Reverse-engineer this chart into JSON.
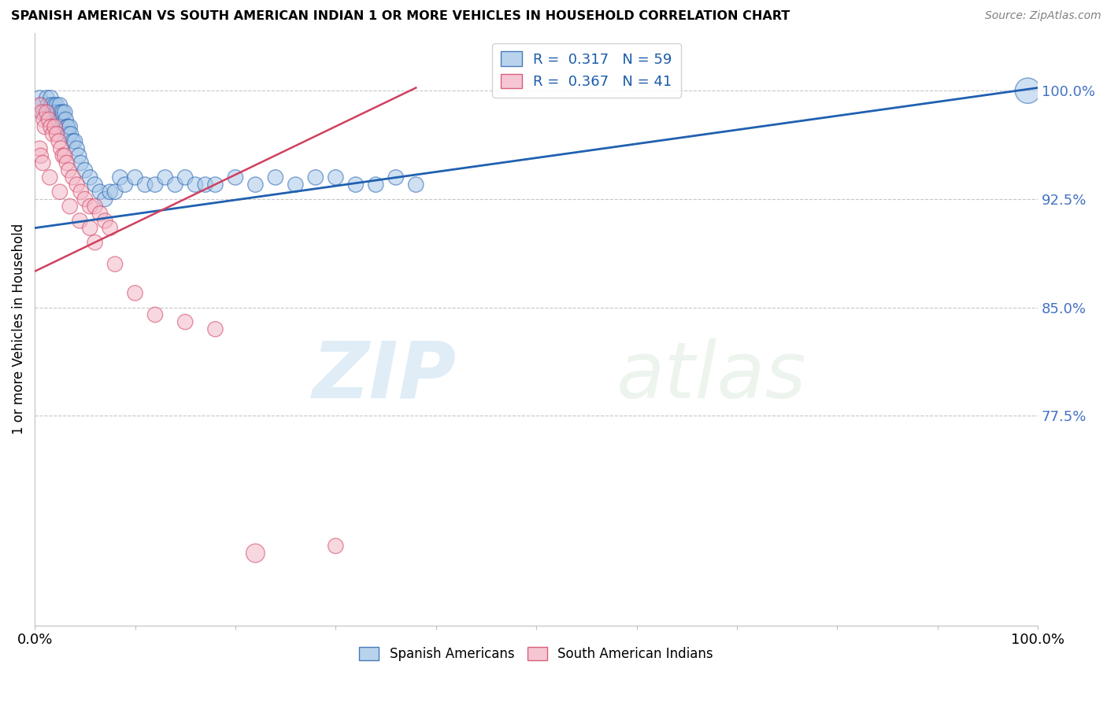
{
  "title": "SPANISH AMERICAN VS SOUTH AMERICAN INDIAN 1 OR MORE VEHICLES IN HOUSEHOLD CORRELATION CHART",
  "source": "Source: ZipAtlas.com",
  "ylabel": "1 or more Vehicles in Household",
  "R_blue": 0.317,
  "N_blue": 59,
  "R_pink": 0.367,
  "N_pink": 41,
  "color_blue": "#a8c8e8",
  "color_pink": "#f4b8c8",
  "trendline_blue": "#2060b0",
  "trendline_pink": "#d04060",
  "watermark_zip": "ZIP",
  "watermark_atlas": "atlas",
  "xlim": [
    0.0,
    1.0
  ],
  "ylim": [
    0.63,
    1.04
  ],
  "ytick_vals": [
    0.775,
    0.85,
    0.925,
    1.0
  ],
  "ytick_labels": [
    "77.5%",
    "85.0%",
    "92.5%",
    "100.0%"
  ],
  "xtick_vals": [
    0.0,
    1.0
  ],
  "xtick_labels": [
    "0.0%",
    "100.0%"
  ],
  "blue_line_x0": 0.0,
  "blue_line_y0": 0.905,
  "blue_line_x1": 1.0,
  "blue_line_y1": 1.002,
  "pink_line_x0": 0.0,
  "pink_line_y0": 0.875,
  "pink_line_x1": 0.38,
  "pink_line_y1": 1.002,
  "blue_x": [
    0.005,
    0.007,
    0.009,
    0.012,
    0.013,
    0.015,
    0.016,
    0.017,
    0.018,
    0.02,
    0.021,
    0.022,
    0.023,
    0.024,
    0.025,
    0.026,
    0.027,
    0.028,
    0.03,
    0.031,
    0.032,
    0.033,
    0.034,
    0.035,
    0.036,
    0.038,
    0.04,
    0.042,
    0.044,
    0.046,
    0.05,
    0.055,
    0.06,
    0.065,
    0.07,
    0.075,
    0.08,
    0.085,
    0.09,
    0.1,
    0.11,
    0.12,
    0.13,
    0.14,
    0.15,
    0.16,
    0.17,
    0.18,
    0.2,
    0.22,
    0.24,
    0.26,
    0.28,
    0.3,
    0.32,
    0.34,
    0.36,
    0.38,
    0.99
  ],
  "blue_y": [
    0.995,
    0.99,
    0.985,
    0.995,
    0.99,
    0.985,
    0.995,
    0.99,
    0.985,
    0.99,
    0.985,
    0.99,
    0.985,
    0.98,
    0.99,
    0.985,
    0.98,
    0.985,
    0.985,
    0.98,
    0.975,
    0.975,
    0.97,
    0.975,
    0.97,
    0.965,
    0.965,
    0.96,
    0.955,
    0.95,
    0.945,
    0.94,
    0.935,
    0.93,
    0.925,
    0.93,
    0.93,
    0.94,
    0.935,
    0.94,
    0.935,
    0.935,
    0.94,
    0.935,
    0.94,
    0.935,
    0.935,
    0.935,
    0.94,
    0.935,
    0.94,
    0.935,
    0.94,
    0.94,
    0.935,
    0.935,
    0.94,
    0.935,
    1.0
  ],
  "blue_sizes": [
    18,
    18,
    18,
    18,
    18,
    18,
    18,
    18,
    18,
    18,
    18,
    18,
    18,
    18,
    18,
    18,
    18,
    18,
    18,
    18,
    18,
    18,
    18,
    18,
    18,
    18,
    18,
    18,
    18,
    18,
    18,
    18,
    18,
    18,
    18,
    18,
    18,
    18,
    18,
    18,
    18,
    18,
    18,
    18,
    18,
    18,
    18,
    18,
    18,
    18,
    18,
    18,
    18,
    18,
    18,
    18,
    18,
    18,
    30
  ],
  "pink_x": [
    0.005,
    0.007,
    0.009,
    0.01,
    0.012,
    0.014,
    0.016,
    0.018,
    0.02,
    0.022,
    0.024,
    0.026,
    0.028,
    0.03,
    0.032,
    0.034,
    0.038,
    0.042,
    0.046,
    0.05,
    0.055,
    0.06,
    0.065,
    0.07,
    0.075,
    0.005,
    0.006,
    0.008,
    0.015,
    0.025,
    0.035,
    0.045,
    0.055,
    0.06,
    0.08,
    0.1,
    0.12,
    0.15,
    0.18,
    0.22,
    0.3
  ],
  "pink_y": [
    0.99,
    0.985,
    0.98,
    0.975,
    0.985,
    0.98,
    0.975,
    0.97,
    0.975,
    0.97,
    0.965,
    0.96,
    0.955,
    0.955,
    0.95,
    0.945,
    0.94,
    0.935,
    0.93,
    0.925,
    0.92,
    0.92,
    0.915,
    0.91,
    0.905,
    0.96,
    0.955,
    0.95,
    0.94,
    0.93,
    0.92,
    0.91,
    0.905,
    0.895,
    0.88,
    0.86,
    0.845,
    0.84,
    0.835,
    0.68,
    0.685
  ],
  "pink_sizes": [
    18,
    18,
    18,
    18,
    18,
    18,
    18,
    18,
    18,
    18,
    18,
    18,
    18,
    18,
    18,
    18,
    18,
    18,
    18,
    18,
    18,
    18,
    18,
    18,
    18,
    18,
    18,
    18,
    18,
    18,
    18,
    18,
    18,
    18,
    18,
    18,
    18,
    18,
    18,
    22,
    18
  ]
}
